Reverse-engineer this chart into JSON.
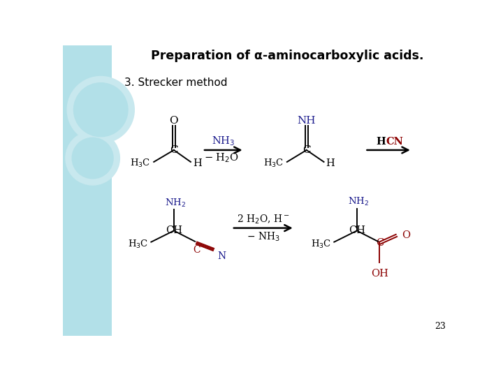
{
  "title": "Preparation of α-aminocarboxylic acids.",
  "subtitle": "3. Strecker method",
  "bg_color": "#ffffff",
  "left_panel_color": "#b2e0e8",
  "title_color": "#000000",
  "subtitle_color": "#000000",
  "blue_color": "#1a1a8c",
  "red_color": "#8B0000",
  "black_color": "#000000",
  "page_num": "23"
}
